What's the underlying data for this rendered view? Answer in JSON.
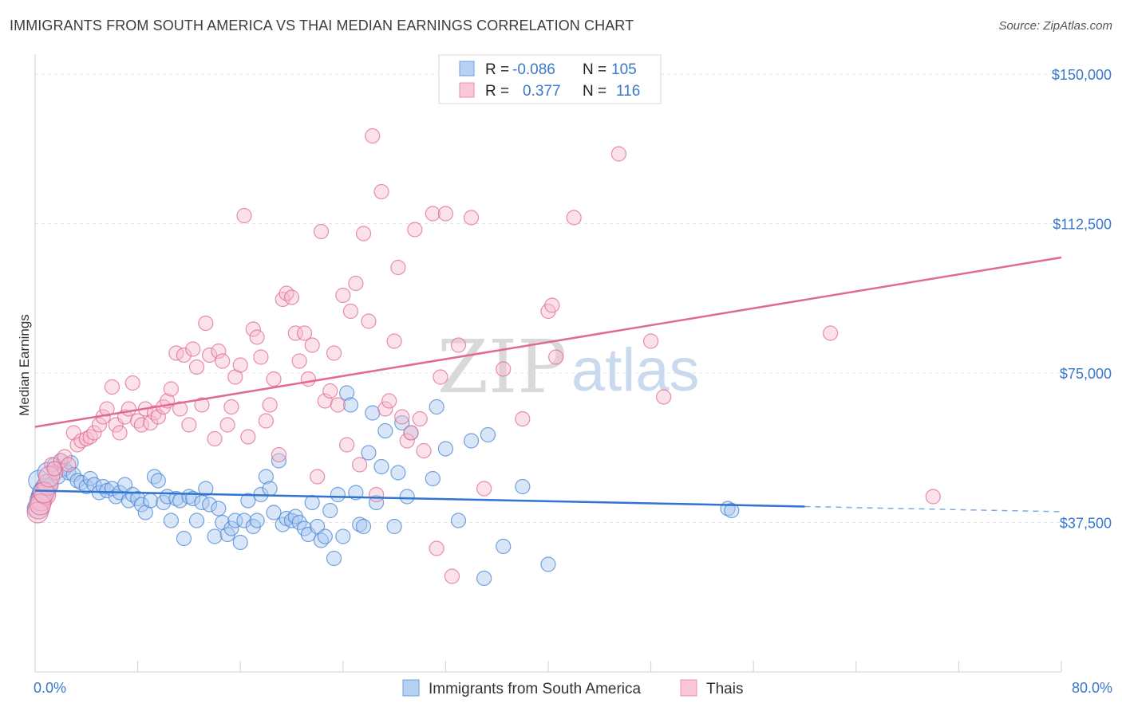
{
  "title": "IMMIGRANTS FROM SOUTH AMERICA VS THAI MEDIAN EARNINGS CORRELATION CHART",
  "source": "Source: ZipAtlas.com",
  "watermark": {
    "part1": "ZIP",
    "part2": "atlas"
  },
  "legend": {
    "rows": [
      {
        "r_label": "R =",
        "r_value": "-0.086",
        "n_label": "N =",
        "n_value": "105",
        "color": "#9fc3ee"
      },
      {
        "r_label": "R =",
        "r_value": "0.377",
        "n_label": "N =",
        "n_value": "116",
        "color": "#f5b3c7"
      }
    ]
  },
  "bottom_legend": [
    {
      "label": "Immigrants from South America",
      "color": "#9fc3ee"
    },
    {
      "label": "Thais",
      "color": "#f5b3c7"
    }
  ],
  "chart_data": {
    "type": "scatter",
    "title": "IMMIGRANTS FROM SOUTH AMERICA VS THAI MEDIAN EARNINGS CORRELATION CHART",
    "xlabel": "",
    "ylabel": "Median Earnings",
    "xlim": [
      0,
      80
    ],
    "ylim": [
      0,
      153000
    ],
    "x_tick_labels": [
      "0.0%",
      "80.0%"
    ],
    "y_ticks": [
      37500,
      75000,
      112500,
      150000
    ],
    "y_tick_labels": [
      "$37,500",
      "$75,000",
      "$112,500",
      "$150,000"
    ],
    "grid": true,
    "legend_position": "top-center",
    "series": [
      {
        "name": "Immigrants from South America",
        "color": "#4a86d4",
        "fill": "#a9c8f0",
        "trend": {
          "x0": 0,
          "y0": 45500,
          "x1": 60,
          "y1": 41500,
          "dashed_to_x": 80,
          "dashed_to_y": 40200
        },
        "points": [
          [
            0.3,
            48000
          ],
          [
            0.5,
            44000
          ],
          [
            0.8,
            46000
          ],
          [
            1.0,
            50000
          ],
          [
            1.2,
            47000
          ],
          [
            1.5,
            52000
          ],
          [
            1.8,
            49000
          ],
          [
            2.0,
            53000
          ],
          [
            2.3,
            51000
          ],
          [
            2.6,
            50000
          ],
          [
            2.8,
            52500
          ],
          [
            3.0,
            49500
          ],
          [
            3.3,
            48000
          ],
          [
            3.6,
            47500
          ],
          [
            4.0,
            46500
          ],
          [
            4.3,
            48500
          ],
          [
            4.6,
            47000
          ],
          [
            5.0,
            45000
          ],
          [
            5.3,
            46500
          ],
          [
            5.6,
            45500
          ],
          [
            6.0,
            46000
          ],
          [
            6.3,
            44000
          ],
          [
            6.6,
            45000
          ],
          [
            7.0,
            47000
          ],
          [
            7.3,
            43000
          ],
          [
            7.6,
            44500
          ],
          [
            8.0,
            43500
          ],
          [
            8.3,
            42000
          ],
          [
            8.6,
            40000
          ],
          [
            9.0,
            43000
          ],
          [
            9.3,
            49000
          ],
          [
            9.6,
            48000
          ],
          [
            10.0,
            42500
          ],
          [
            10.3,
            44000
          ],
          [
            10.6,
            38000
          ],
          [
            11.0,
            43500
          ],
          [
            11.3,
            43000
          ],
          [
            11.6,
            33500
          ],
          [
            12.0,
            44000
          ],
          [
            12.3,
            43500
          ],
          [
            12.6,
            38000
          ],
          [
            13.0,
            42500
          ],
          [
            13.3,
            46000
          ],
          [
            13.6,
            42000
          ],
          [
            14.0,
            34000
          ],
          [
            14.3,
            41000
          ],
          [
            14.6,
            37500
          ],
          [
            15.0,
            34500
          ],
          [
            15.3,
            36000
          ],
          [
            15.6,
            38000
          ],
          [
            16.0,
            32500
          ],
          [
            16.3,
            38000
          ],
          [
            16.6,
            43000
          ],
          [
            17.0,
            36500
          ],
          [
            17.3,
            38000
          ],
          [
            17.6,
            44500
          ],
          [
            18.0,
            49000
          ],
          [
            18.3,
            46000
          ],
          [
            18.6,
            40000
          ],
          [
            19.0,
            53000
          ],
          [
            19.3,
            37000
          ],
          [
            19.6,
            38500
          ],
          [
            20.0,
            38000
          ],
          [
            20.3,
            39000
          ],
          [
            20.6,
            37500
          ],
          [
            21.0,
            36000
          ],
          [
            21.3,
            34500
          ],
          [
            21.6,
            42500
          ],
          [
            22.0,
            36500
          ],
          [
            22.3,
            33000
          ],
          [
            22.6,
            34000
          ],
          [
            23.0,
            40500
          ],
          [
            23.3,
            28500
          ],
          [
            23.6,
            44500
          ],
          [
            24.0,
            34000
          ],
          [
            24.3,
            70000
          ],
          [
            24.6,
            67000
          ],
          [
            25.0,
            45000
          ],
          [
            25.3,
            37000
          ],
          [
            25.6,
            36500
          ],
          [
            26.0,
            55000
          ],
          [
            26.3,
            65000
          ],
          [
            26.6,
            42500
          ],
          [
            27.0,
            51500
          ],
          [
            27.3,
            60500
          ],
          [
            28.0,
            36500
          ],
          [
            28.3,
            50000
          ],
          [
            28.6,
            62500
          ],
          [
            29.0,
            44000
          ],
          [
            29.3,
            60000
          ],
          [
            31.0,
            48500
          ],
          [
            31.3,
            66500
          ],
          [
            32.0,
            56000
          ],
          [
            33.0,
            38000
          ],
          [
            34.0,
            58000
          ],
          [
            35.0,
            23500
          ],
          [
            35.3,
            59500
          ],
          [
            36.5,
            31500
          ],
          [
            38.0,
            46500
          ],
          [
            40.0,
            27000
          ],
          [
            54.0,
            41000
          ],
          [
            54.3,
            40500
          ],
          [
            0.2,
            41000
          ],
          [
            0.4,
            43000
          ],
          [
            0.6,
            45000
          ]
        ]
      },
      {
        "name": "Thais",
        "color": "#e06a90",
        "fill": "#f7bcd0",
        "trend": {
          "x0": 0,
          "y0": 61500,
          "x1": 80,
          "y1": 104000
        },
        "points": [
          [
            0.3,
            41000
          ],
          [
            0.5,
            43000
          ],
          [
            0.8,
            44500
          ],
          [
            1.0,
            47000
          ],
          [
            1.3,
            52000
          ],
          [
            1.6,
            50000
          ],
          [
            2.0,
            53000
          ],
          [
            2.3,
            54000
          ],
          [
            2.6,
            52000
          ],
          [
            3.0,
            60000
          ],
          [
            3.3,
            57000
          ],
          [
            3.6,
            58000
          ],
          [
            4.0,
            58500
          ],
          [
            4.3,
            59000
          ],
          [
            4.6,
            60000
          ],
          [
            5.0,
            62000
          ],
          [
            5.3,
            64000
          ],
          [
            5.6,
            66000
          ],
          [
            6.0,
            71500
          ],
          [
            6.3,
            62000
          ],
          [
            6.6,
            60000
          ],
          [
            7.0,
            64000
          ],
          [
            7.3,
            66000
          ],
          [
            7.6,
            72500
          ],
          [
            8.0,
            63000
          ],
          [
            8.3,
            62000
          ],
          [
            8.6,
            66000
          ],
          [
            9.0,
            62500
          ],
          [
            9.3,
            65000
          ],
          [
            9.6,
            64000
          ],
          [
            10.0,
            66500
          ],
          [
            10.3,
            68000
          ],
          [
            10.6,
            71000
          ],
          [
            11.0,
            80000
          ],
          [
            11.3,
            66000
          ],
          [
            11.6,
            79500
          ],
          [
            12.0,
            62000
          ],
          [
            12.3,
            81000
          ],
          [
            12.6,
            76500
          ],
          [
            13.0,
            67000
          ],
          [
            13.3,
            87500
          ],
          [
            13.6,
            79500
          ],
          [
            14.0,
            58500
          ],
          [
            14.3,
            80500
          ],
          [
            14.6,
            78000
          ],
          [
            15.0,
            62000
          ],
          [
            15.3,
            66500
          ],
          [
            15.6,
            74000
          ],
          [
            16.0,
            77000
          ],
          [
            16.3,
            114500
          ],
          [
            16.6,
            59000
          ],
          [
            17.0,
            86000
          ],
          [
            17.3,
            84000
          ],
          [
            17.6,
            79000
          ],
          [
            18.0,
            63000
          ],
          [
            18.3,
            67000
          ],
          [
            18.6,
            73500
          ],
          [
            19.0,
            54500
          ],
          [
            19.3,
            93500
          ],
          [
            19.6,
            95000
          ],
          [
            20.0,
            94000
          ],
          [
            20.3,
            85000
          ],
          [
            20.6,
            78000
          ],
          [
            21.0,
            85000
          ],
          [
            21.3,
            73500
          ],
          [
            21.6,
            82000
          ],
          [
            22.0,
            49000
          ],
          [
            22.3,
            110500
          ],
          [
            22.6,
            68000
          ],
          [
            23.0,
            70500
          ],
          [
            23.3,
            80000
          ],
          [
            23.6,
            67000
          ],
          [
            24.0,
            94500
          ],
          [
            24.3,
            57000
          ],
          [
            24.6,
            90500
          ],
          [
            25.0,
            97500
          ],
          [
            25.3,
            52000
          ],
          [
            25.6,
            110000
          ],
          [
            26.0,
            88000
          ],
          [
            26.3,
            134500
          ],
          [
            26.6,
            44500
          ],
          [
            27.0,
            120500
          ],
          [
            27.3,
            66000
          ],
          [
            27.6,
            68000
          ],
          [
            28.0,
            83000
          ],
          [
            28.3,
            101500
          ],
          [
            28.6,
            64000
          ],
          [
            29.0,
            58000
          ],
          [
            29.3,
            60000
          ],
          [
            29.6,
            111000
          ],
          [
            30.0,
            63500
          ],
          [
            30.3,
            55500
          ],
          [
            31.0,
            115000
          ],
          [
            31.3,
            31000
          ],
          [
            31.6,
            74000
          ],
          [
            32.0,
            115000
          ],
          [
            32.5,
            24000
          ],
          [
            33.0,
            82000
          ],
          [
            34.0,
            114000
          ],
          [
            35.0,
            46000
          ],
          [
            36.5,
            76000
          ],
          [
            38.0,
            63500
          ],
          [
            40.0,
            90500
          ],
          [
            40.3,
            92000
          ],
          [
            40.6,
            79000
          ],
          [
            42.0,
            114000
          ],
          [
            45.5,
            130000
          ],
          [
            48.0,
            83000
          ],
          [
            49.0,
            69000
          ],
          [
            62.0,
            85000
          ],
          [
            70.0,
            44000
          ],
          [
            0.2,
            40000
          ],
          [
            0.4,
            42000
          ],
          [
            0.7,
            45000
          ],
          [
            1.1,
            49000
          ],
          [
            1.5,
            51000
          ]
        ]
      }
    ]
  }
}
